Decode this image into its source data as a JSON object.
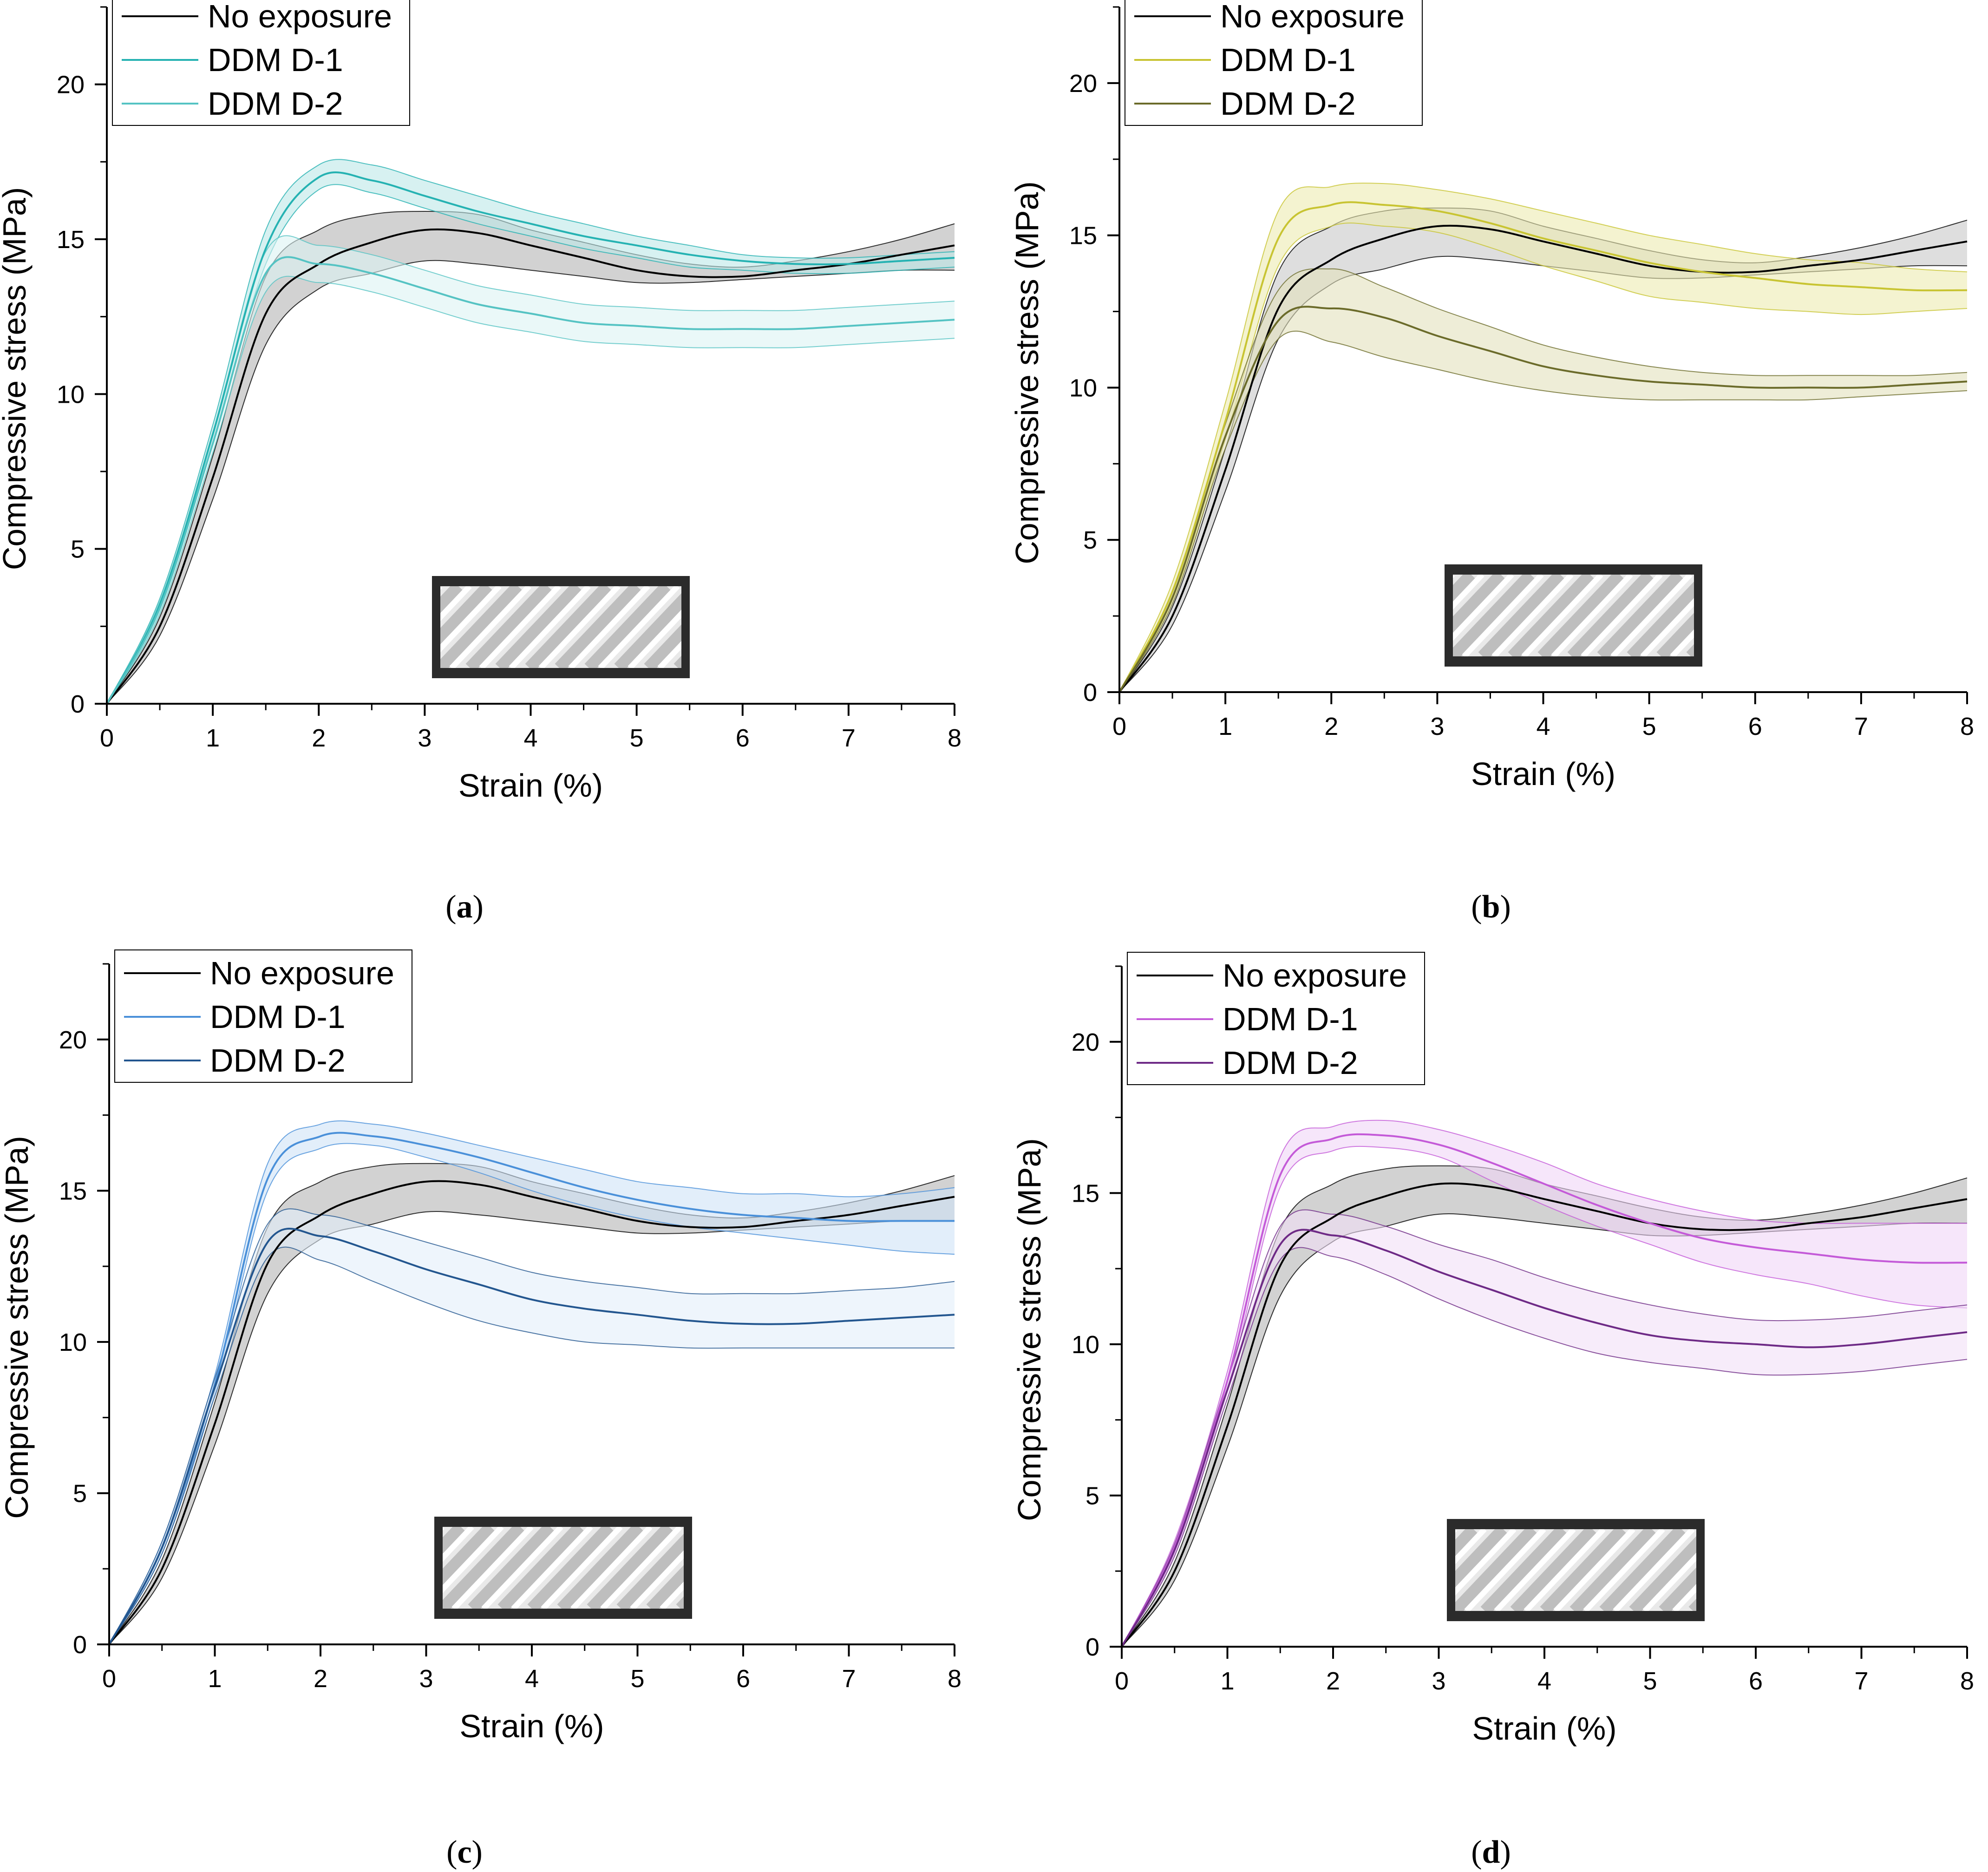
{
  "colors": {
    "axis": "#000000",
    "no_exposure": "#000000",
    "no_exposure_fill": "#b4b4b4",
    "inset_frame": "#2b2b2b",
    "inset_face": "#e9e9e9",
    "inset_stripe": "#ffffff",
    "inset_shade": "#9a9a9a"
  },
  "chart_data": [
    {
      "type": "line",
      "panel": "a",
      "panel_label": "a",
      "xlabel": "Strain (%)",
      "ylabel": "Compressive stress (MPa)",
      "xlim": [
        0,
        8
      ],
      "ylim": [
        0,
        22.5
      ],
      "x_ticks": [
        0,
        1,
        2,
        3,
        4,
        5,
        6,
        7,
        8
      ],
      "y_ticks": [
        0,
        5,
        10,
        15,
        20
      ],
      "legend_position": "top-left",
      "x": [
        0,
        0.5,
        1,
        1.5,
        2,
        2.5,
        3,
        3.5,
        4,
        4.5,
        5,
        5.5,
        6,
        6.5,
        7,
        7.5,
        8
      ],
      "series": [
        {
          "name": "No exposure",
          "color": "#000000",
          "fill": "#b4b4b4",
          "values": [
            0,
            2.5,
            7.3,
            12.6,
            14.2,
            14.9,
            15.3,
            15.2,
            14.8,
            14.4,
            14.0,
            13.8,
            13.8,
            14.0,
            14.2,
            14.5,
            14.8
          ],
          "lower": [
            0,
            2.2,
            6.6,
            11.6,
            13.4,
            13.9,
            14.3,
            14.2,
            14.0,
            13.8,
            13.6,
            13.6,
            13.7,
            13.8,
            13.9,
            14.0,
            14.0
          ],
          "upper": [
            0,
            2.8,
            8.0,
            13.8,
            15.3,
            15.8,
            15.9,
            15.8,
            15.3,
            14.9,
            14.5,
            14.2,
            14.1,
            14.3,
            14.6,
            15.0,
            15.5
          ]
        },
        {
          "name": "DDM D-1",
          "color": "#25b2b2",
          "fill": "#bde8e8",
          "values": [
            0,
            3.2,
            8.7,
            14.7,
            17.0,
            16.9,
            16.4,
            15.9,
            15.5,
            15.1,
            14.8,
            14.5,
            14.3,
            14.2,
            14.2,
            14.3,
            14.4
          ],
          "lower": [
            0,
            3.0,
            8.4,
            14.2,
            16.6,
            16.5,
            16.0,
            15.5,
            15.1,
            14.7,
            14.4,
            14.1,
            14.0,
            13.9,
            13.9,
            14.0,
            14.1
          ],
          "upper": [
            0,
            3.4,
            9.0,
            15.3,
            17.4,
            17.4,
            16.9,
            16.4,
            15.9,
            15.5,
            15.1,
            14.8,
            14.5,
            14.4,
            14.4,
            14.5,
            14.6
          ]
        },
        {
          "name": "DDM D-2",
          "color": "#55c3c3",
          "fill": "#dcf3f3",
          "values": [
            0,
            3.1,
            8.4,
            13.9,
            14.2,
            13.9,
            13.4,
            12.9,
            12.6,
            12.3,
            12.2,
            12.1,
            12.1,
            12.1,
            12.2,
            12.3,
            12.4
          ],
          "lower": [
            0,
            2.9,
            8.1,
            13.3,
            13.6,
            13.3,
            12.8,
            12.3,
            12.0,
            11.7,
            11.6,
            11.5,
            11.5,
            11.5,
            11.6,
            11.7,
            11.8
          ],
          "upper": [
            0,
            3.3,
            8.7,
            14.6,
            14.8,
            14.5,
            14.0,
            13.5,
            13.2,
            12.9,
            12.8,
            12.7,
            12.7,
            12.7,
            12.8,
            12.9,
            13.0
          ]
        }
      ]
    },
    {
      "type": "line",
      "panel": "b",
      "panel_label": "b",
      "xlabel": "Strain (%)",
      "ylabel": "Compressive stress (MPa)",
      "xlim": [
        0,
        8
      ],
      "ylim": [
        0,
        22.5
      ],
      "x_ticks": [
        0,
        1,
        2,
        3,
        4,
        5,
        6,
        7,
        8
      ],
      "y_ticks": [
        0,
        5,
        10,
        15,
        20
      ],
      "legend_position": "top-left",
      "x": [
        0,
        0.5,
        1,
        1.5,
        2,
        2.5,
        3,
        3.5,
        4,
        4.5,
        5,
        5.5,
        6,
        6.5,
        7,
        7.5,
        8
      ],
      "series": [
        {
          "name": "No exposure",
          "color": "#000000",
          "fill": "#c8c8c8",
          "values": [
            0,
            2.5,
            7.3,
            12.6,
            14.2,
            14.9,
            15.3,
            15.2,
            14.8,
            14.4,
            14.0,
            13.8,
            13.8,
            14.0,
            14.2,
            14.5,
            14.8
          ],
          "lower": [
            0,
            2.2,
            6.6,
            11.6,
            13.4,
            13.9,
            14.3,
            14.2,
            14.0,
            13.8,
            13.6,
            13.6,
            13.7,
            13.8,
            13.9,
            14.0,
            14.0
          ],
          "upper": [
            0,
            2.8,
            8.0,
            13.8,
            15.3,
            15.8,
            15.9,
            15.8,
            15.3,
            14.9,
            14.5,
            14.2,
            14.1,
            14.3,
            14.6,
            15.0,
            15.5
          ]
        },
        {
          "name": "DDM D-1",
          "color": "#c8c432",
          "fill": "#ecebb0",
          "values": [
            0,
            3.3,
            8.9,
            14.9,
            16.0,
            16.0,
            15.8,
            15.4,
            14.9,
            14.5,
            14.1,
            13.8,
            13.6,
            13.4,
            13.3,
            13.2,
            13.2
          ],
          "lower": [
            0,
            3.0,
            8.3,
            14.0,
            15.3,
            15.3,
            15.1,
            14.6,
            14.0,
            13.5,
            13.0,
            12.8,
            12.6,
            12.5,
            12.4,
            12.5,
            12.6
          ],
          "upper": [
            0,
            3.6,
            9.5,
            15.8,
            16.6,
            16.7,
            16.5,
            16.2,
            15.8,
            15.4,
            15.0,
            14.7,
            14.4,
            14.2,
            14.1,
            13.9,
            13.8
          ]
        },
        {
          "name": "DDM D-2",
          "color": "#6b6b2a",
          "fill": "#e2e1bc",
          "values": [
            0,
            3.1,
            8.4,
            12.2,
            12.6,
            12.3,
            11.7,
            11.2,
            10.7,
            10.4,
            10.2,
            10.1,
            10.0,
            10.0,
            10.0,
            10.1,
            10.2
          ],
          "lower": [
            0,
            2.9,
            8.0,
            11.6,
            11.5,
            11.0,
            10.6,
            10.2,
            9.9,
            9.7,
            9.6,
            9.6,
            9.6,
            9.6,
            9.7,
            9.8,
            9.9
          ],
          "upper": [
            0,
            3.3,
            8.8,
            13.2,
            13.9,
            13.3,
            12.6,
            12.0,
            11.4,
            11.0,
            10.7,
            10.5,
            10.4,
            10.4,
            10.4,
            10.4,
            10.5
          ]
        }
      ]
    },
    {
      "type": "line",
      "panel": "c",
      "panel_label": "c",
      "xlabel": "Strain (%)",
      "ylabel": "Compressive stress (MPa)",
      "xlim": [
        0,
        8
      ],
      "ylim": [
        0,
        22.5
      ],
      "x_ticks": [
        0,
        1,
        2,
        3,
        4,
        5,
        6,
        7,
        8
      ],
      "y_ticks": [
        0,
        5,
        10,
        15,
        20
      ],
      "legend_position": "top-left",
      "x": [
        0,
        0.5,
        1,
        1.5,
        2,
        2.5,
        3,
        3.5,
        4,
        4.5,
        5,
        5.5,
        6,
        6.5,
        7,
        7.5,
        8
      ],
      "series": [
        {
          "name": "No exposure",
          "color": "#000000",
          "fill": "#b4b4b4",
          "values": [
            0,
            2.5,
            7.3,
            12.6,
            14.2,
            14.9,
            15.3,
            15.2,
            14.8,
            14.4,
            14.0,
            13.8,
            13.8,
            14.0,
            14.2,
            14.5,
            14.8
          ],
          "lower": [
            0,
            2.2,
            6.6,
            11.6,
            13.4,
            13.9,
            14.3,
            14.2,
            14.0,
            13.8,
            13.6,
            13.6,
            13.7,
            13.8,
            13.9,
            14.0,
            14.0
          ],
          "upper": [
            0,
            2.8,
            8.0,
            13.8,
            15.3,
            15.8,
            15.9,
            15.8,
            15.3,
            14.9,
            14.5,
            14.2,
            14.1,
            14.3,
            14.6,
            15.0,
            15.5
          ]
        },
        {
          "name": "DDM D-1",
          "color": "#4a90d9",
          "fill": "#cfe2f6",
          "values": [
            0,
            3.2,
            8.6,
            15.4,
            16.8,
            16.8,
            16.5,
            16.1,
            15.6,
            15.1,
            14.7,
            14.4,
            14.2,
            14.1,
            14.0,
            14.0,
            14.0
          ],
          "lower": [
            0,
            3.0,
            8.3,
            15.0,
            16.4,
            16.5,
            16.1,
            15.6,
            15.0,
            14.5,
            14.1,
            13.8,
            13.6,
            13.4,
            13.2,
            13.0,
            12.9
          ],
          "upper": [
            0,
            3.4,
            8.9,
            15.9,
            17.2,
            17.2,
            16.9,
            16.5,
            16.1,
            15.7,
            15.3,
            15.1,
            14.9,
            14.9,
            14.8,
            14.9,
            15.1
          ]
        },
        {
          "name": "DDM D-2",
          "color": "#23568f",
          "fill": "#e3eefa",
          "values": [
            0,
            3.2,
            8.5,
            13.3,
            13.5,
            13.0,
            12.4,
            11.9,
            11.4,
            11.1,
            10.9,
            10.7,
            10.6,
            10.6,
            10.7,
            10.8,
            10.9
          ],
          "lower": [
            0,
            3.0,
            8.2,
            12.8,
            12.7,
            12.0,
            11.3,
            10.7,
            10.3,
            10.0,
            9.9,
            9.8,
            9.8,
            9.8,
            9.8,
            9.8,
            9.8
          ],
          "upper": [
            0,
            3.4,
            8.8,
            13.9,
            14.2,
            13.8,
            13.3,
            12.8,
            12.3,
            12.0,
            11.8,
            11.6,
            11.6,
            11.6,
            11.7,
            11.8,
            12.0
          ]
        }
      ]
    },
    {
      "type": "line",
      "panel": "d",
      "panel_label": "d",
      "xlabel": "Strain (%)",
      "ylabel": "Compressive stress (MPa)",
      "xlim": [
        0,
        8
      ],
      "ylim": [
        0,
        22.5
      ],
      "x_ticks": [
        0,
        1,
        2,
        3,
        4,
        5,
        6,
        7,
        8
      ],
      "y_ticks": [
        0,
        5,
        10,
        15,
        20
      ],
      "legend_position": "top-left",
      "x": [
        0,
        0.5,
        1,
        1.5,
        2,
        2.5,
        3,
        3.5,
        4,
        4.5,
        5,
        5.5,
        6,
        6.5,
        7,
        7.5,
        8
      ],
      "series": [
        {
          "name": "No exposure",
          "color": "#000000",
          "fill": "#b4b4b4",
          "values": [
            0,
            2.5,
            7.3,
            12.6,
            14.2,
            14.9,
            15.3,
            15.2,
            14.8,
            14.4,
            14.0,
            13.8,
            13.8,
            14.0,
            14.2,
            14.5,
            14.8
          ],
          "lower": [
            0,
            2.2,
            6.6,
            11.6,
            13.4,
            13.9,
            14.3,
            14.2,
            14.0,
            13.8,
            13.6,
            13.6,
            13.7,
            13.8,
            13.9,
            14.0,
            14.0
          ],
          "upper": [
            0,
            2.8,
            8.0,
            13.8,
            15.3,
            15.8,
            15.9,
            15.8,
            15.3,
            14.9,
            14.5,
            14.2,
            14.1,
            14.3,
            14.6,
            15.0,
            15.5
          ]
        },
        {
          "name": "DDM D-1",
          "color": "#c45ad8",
          "fill": "#f0d6f6",
          "values": [
            0,
            3.3,
            8.8,
            15.6,
            16.8,
            16.9,
            16.6,
            16.0,
            15.3,
            14.6,
            14.0,
            13.5,
            13.2,
            13.0,
            12.8,
            12.7,
            12.7
          ],
          "lower": [
            0,
            3.1,
            8.5,
            15.2,
            16.4,
            16.5,
            16.2,
            15.4,
            14.6,
            13.9,
            13.3,
            12.7,
            12.3,
            12.0,
            11.6,
            11.3,
            11.2
          ],
          "upper": [
            0,
            3.5,
            9.1,
            16.2,
            17.2,
            17.4,
            17.1,
            16.6,
            16.0,
            15.3,
            14.8,
            14.4,
            14.1,
            14.0,
            14.0,
            14.0,
            14.0
          ]
        },
        {
          "name": "DDM D-2",
          "color": "#6e2a86",
          "fill": "#f2e0f6",
          "values": [
            0,
            3.2,
            8.5,
            13.3,
            13.6,
            13.1,
            12.4,
            11.8,
            11.2,
            10.7,
            10.3,
            10.1,
            10.0,
            9.9,
            10.0,
            10.2,
            10.4
          ],
          "lower": [
            0,
            3.0,
            8.2,
            12.8,
            12.9,
            12.3,
            11.5,
            10.8,
            10.2,
            9.7,
            9.4,
            9.2,
            9.0,
            9.0,
            9.1,
            9.3,
            9.5
          ],
          "upper": [
            0,
            3.4,
            8.8,
            13.9,
            14.3,
            13.9,
            13.3,
            12.8,
            12.2,
            11.7,
            11.3,
            11.0,
            10.8,
            10.8,
            10.9,
            11.1,
            11.3
          ]
        }
      ]
    }
  ]
}
